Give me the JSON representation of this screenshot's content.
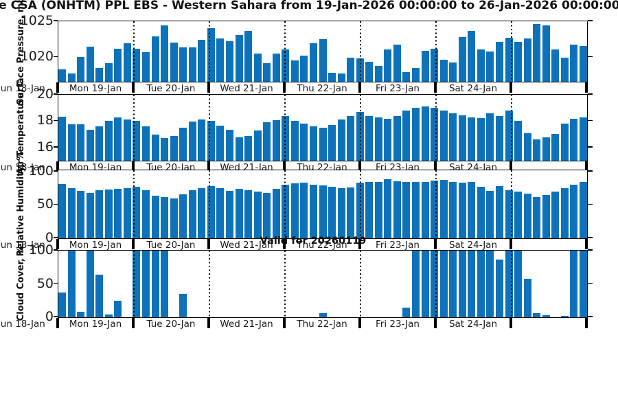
{
  "title": "de CSA (ONHTM) PPL EBS  - Western Sahara from 19-Jan-2026 00:00:00 to 26-Jan-2026 00:00:00",
  "annotation": "Valid for 20260119",
  "bar_color": "#0d72b9",
  "axis_color": "#000000",
  "x_day_labels": [
    "Sun 18-Jan",
    "Mon 19-Jan",
    "Tue 20-Jan",
    "Wed 21-Jan",
    "Thu 22-Jan",
    "Fri 23-Jan",
    "Sat 24-Jan",
    ""
  ],
  "chart_data": [
    {
      "type": "bar",
      "name": "surface-pressure",
      "ylabel": "Surface Pressure, mb",
      "ymin": 1016.6,
      "ymax": 1025,
      "yticks": [
        1025,
        1020
      ],
      "grid": "vertical-dotted-day-boundaries",
      "x_unit": "3-hourly steps from 19-Jan-2026 00:00 to 26-Jan-2026 00:00",
      "values": [
        1018.3,
        1017.7,
        1020.0,
        1021.5,
        1018.5,
        1019.2,
        1021.2,
        1021.9,
        1021.2,
        1020.7,
        1022.9,
        1024.4,
        1022.0,
        1021.4,
        1021.4,
        1022.4,
        1024.0,
        1022.6,
        1022.2,
        1023.1,
        1023.7,
        1020.5,
        1019.2,
        1020.5,
        1021.1,
        1019.6,
        1020.2,
        1021.9,
        1022.5,
        1017.8,
        1017.7,
        1019.9,
        1019.8,
        1019.4,
        1018.8,
        1021.1,
        1021.8,
        1017.9,
        1018.5,
        1020.9,
        1021.2,
        1019.7,
        1019.3,
        1022.8,
        1023.7,
        1021.1,
        1020.8,
        1022.1,
        1022.7,
        1022.1,
        1022.6,
        1024.6,
        1024.4,
        1021.1,
        1019.9,
        1021.8,
        1021.6
      ]
    },
    {
      "type": "bar",
      "name": "air-temperature",
      "ylabel": "Air Temperature, C",
      "ymin": 15,
      "ymax": 20,
      "yticks": [
        20,
        18,
        16
      ],
      "grid": "vertical-dotted-day-boundaries",
      "values": [
        18.35,
        17.75,
        17.75,
        17.35,
        17.6,
        18.0,
        18.3,
        18.15,
        18.0,
        17.6,
        17.0,
        16.7,
        16.85,
        17.5,
        17.95,
        18.1,
        18.0,
        17.65,
        17.35,
        16.75,
        16.85,
        17.3,
        17.9,
        18.05,
        18.4,
        18.0,
        17.8,
        17.6,
        17.5,
        17.7,
        18.1,
        18.4,
        18.7,
        18.4,
        18.3,
        18.2,
        18.4,
        18.8,
        19.0,
        19.1,
        19.0,
        18.8,
        18.6,
        18.45,
        18.3,
        18.25,
        18.6,
        18.4,
        18.8,
        18.0,
        17.1,
        16.6,
        16.75,
        17.05,
        17.8,
        18.2,
        18.3
      ]
    },
    {
      "type": "bar",
      "name": "relative-humidity",
      "ylabel": "Relative Humidity, %",
      "ymin": 0,
      "ymax": 102,
      "yticks": [
        100,
        50,
        0
      ],
      "grid": "vertical-dotted-day-boundaries",
      "values": [
        81,
        75,
        71,
        68,
        72,
        73,
        74,
        75.5,
        77,
        72.5,
        64,
        62,
        60,
        66,
        72.5,
        75.5,
        78,
        75,
        71.5,
        74,
        72.5,
        70.5,
        68,
        74,
        80,
        82,
        83.5,
        80,
        79.5,
        77,
        75,
        76,
        83,
        85,
        85,
        88.5,
        86,
        85,
        85,
        84,
        87,
        87.5,
        85,
        83,
        84.5,
        77,
        71.5,
        78,
        72.5,
        70,
        67,
        62,
        64.5,
        70.5,
        75,
        80,
        84
      ]
    },
    {
      "type": "bar",
      "name": "cloud-cover",
      "ylabel": "Cloud Cover, %",
      "ymin": 0,
      "ymax": 100,
      "yticks": [
        100,
        50,
        0
      ],
      "grid": "vertical-dotted-day-boundaries",
      "values": [
        37,
        100,
        8,
        100,
        64,
        4,
        25,
        0,
        100,
        100,
        100,
        100,
        0,
        35,
        0,
        0,
        0,
        0,
        0,
        0,
        0,
        0,
        0,
        0,
        0,
        0,
        0,
        0,
        6,
        0,
        0,
        0,
        0,
        0,
        0,
        0,
        0,
        14,
        100,
        100,
        100,
        100,
        100,
        100,
        100,
        100,
        100,
        87,
        100,
        100,
        58,
        6,
        3,
        0,
        2,
        100,
        100
      ]
    }
  ]
}
